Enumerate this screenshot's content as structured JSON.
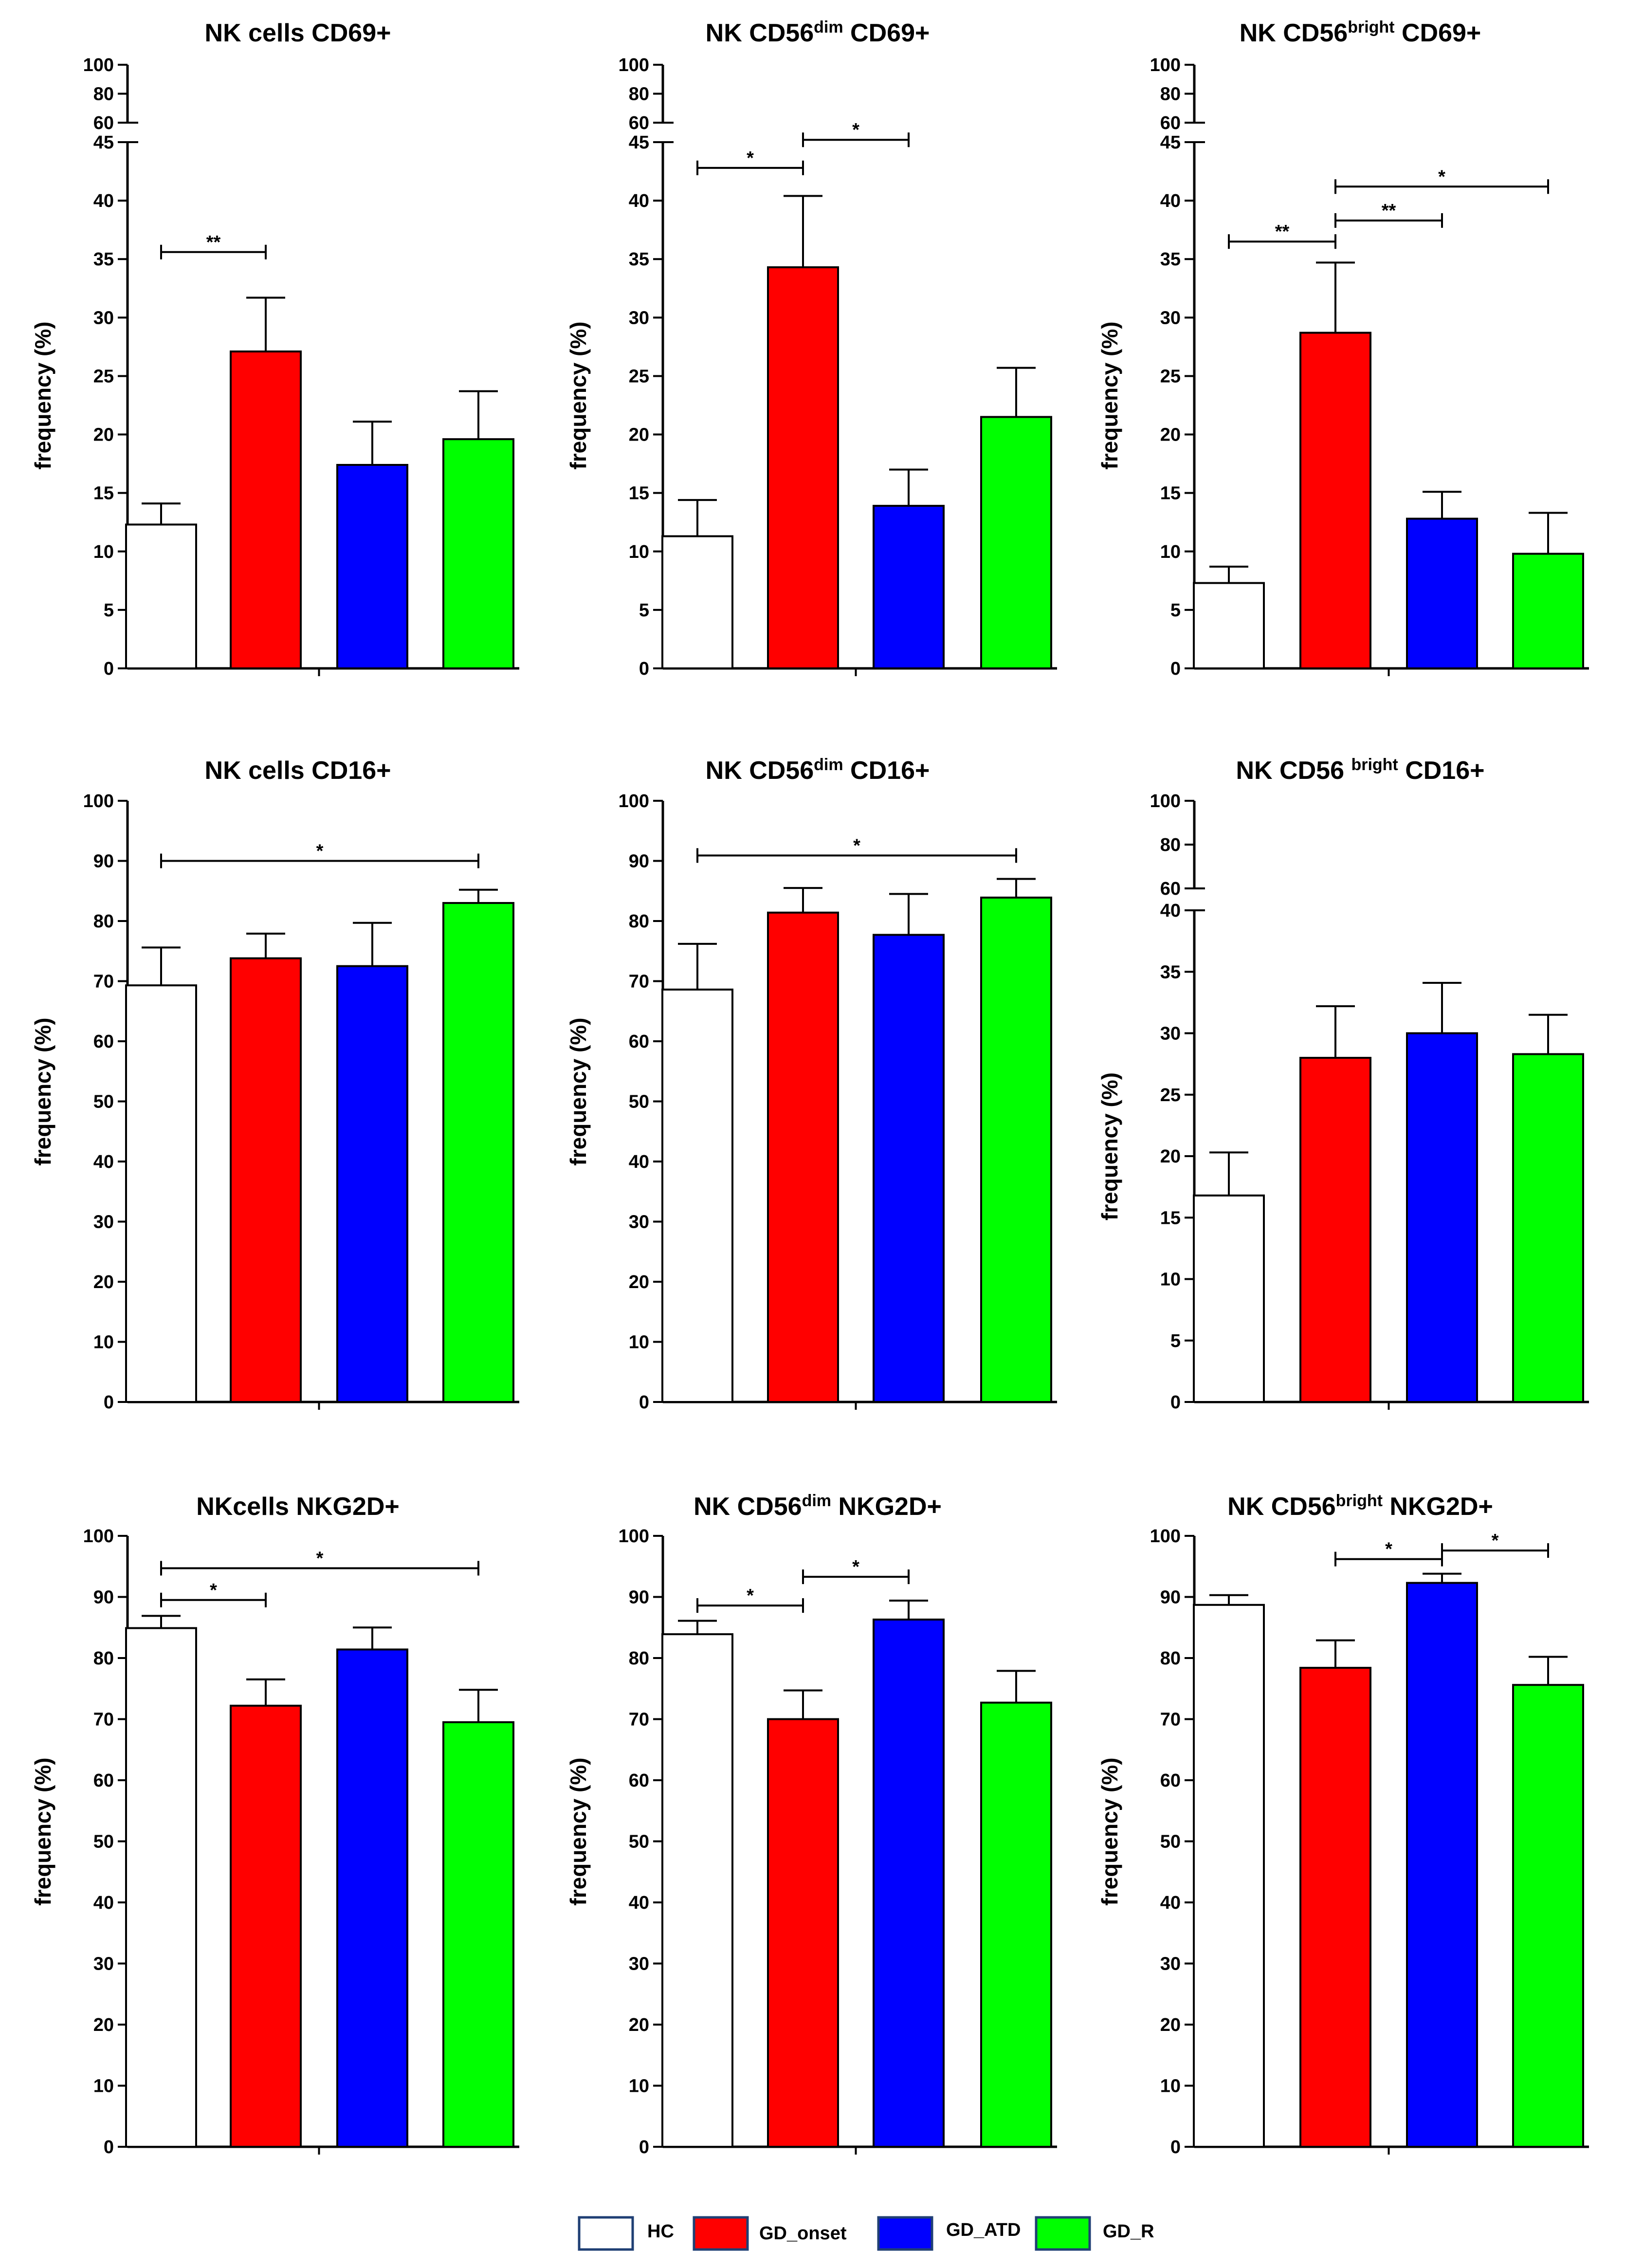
{
  "figure": {
    "y_axis_label": "frequency (%)",
    "group_colors": {
      "HC": "#ffffff",
      "GD_onset": "#ff0000",
      "GD_ATD": "#0000ff",
      "GD_R": "#00ff00"
    }
  },
  "legend": {
    "items": [
      {
        "label": "HC",
        "color": "#ffffff"
      },
      {
        "label": "GD_onset",
        "color": "#ff0000"
      },
      {
        "label": "GD_ATD",
        "color": "#0000ff"
      },
      {
        "label": "GD_R",
        "color": "#00ff00"
      }
    ]
  },
  "chart_data": [
    {
      "type": "bar",
      "title": {
        "text": "NK cells CD69+",
        "main": "NK cells CD69+",
        "sup": "",
        "tail": ""
      },
      "xlabel": "",
      "ylabel": "frequency (%)",
      "categories": [
        "HC",
        "GD_onset",
        "GD_ATD",
        "GD_R"
      ],
      "values": [
        12.3,
        27.1,
        17.4,
        19.6
      ],
      "errors": [
        1.8,
        4.6,
        3.7,
        4.1
      ],
      "y_segments": [
        {
          "range": [
            0,
            45
          ],
          "ticks": [
            0,
            5,
            10,
            15,
            20,
            25,
            30,
            35,
            40,
            45
          ]
        },
        {
          "range": [
            60,
            100
          ],
          "ticks": [
            60,
            80,
            100
          ]
        }
      ],
      "significance": [
        {
          "from": 0,
          "to": 1,
          "label": "**",
          "y": 35.6
        }
      ]
    },
    {
      "type": "bar",
      "title": {
        "text": "NK CD56dim CD69+",
        "main": "NK CD56",
        "sup": "dim",
        "tail": " CD69+"
      },
      "xlabel": "",
      "ylabel": "frequency (%)",
      "categories": [
        "HC",
        "GD_onset",
        "GD_ATD",
        "GD_R"
      ],
      "values": [
        11.3,
        34.3,
        13.9,
        21.5
      ],
      "errors": [
        3.1,
        6.1,
        3.1,
        4.2
      ],
      "y_segments": [
        {
          "range": [
            0,
            45
          ],
          "ticks": [
            0,
            5,
            10,
            15,
            20,
            25,
            30,
            35,
            40,
            45
          ]
        },
        {
          "range": [
            60,
            100
          ],
          "ticks": [
            60,
            80,
            100
          ]
        }
      ],
      "significance": [
        {
          "from": 0,
          "to": 1,
          "label": "*",
          "y": 42.8
        },
        {
          "from": 1,
          "to": 2,
          "label": "*",
          "y": 45.2
        }
      ]
    },
    {
      "type": "bar",
      "title": {
        "text": "NK CD56bright CD69+",
        "main": "NK CD56",
        "sup": "bright",
        "tail": " CD69+"
      },
      "xlabel": "",
      "ylabel": "frequency (%)",
      "categories": [
        "HC",
        "GD_onset",
        "GD_ATD",
        "GD_R"
      ],
      "values": [
        7.3,
        28.7,
        12.8,
        9.8
      ],
      "errors": [
        1.4,
        6.0,
        2.3,
        3.5
      ],
      "y_segments": [
        {
          "range": [
            0,
            45
          ],
          "ticks": [
            0,
            5,
            10,
            15,
            20,
            25,
            30,
            35,
            40,
            45
          ]
        },
        {
          "range": [
            60,
            100
          ],
          "ticks": [
            60,
            80,
            100
          ]
        }
      ],
      "significance": [
        {
          "from": 0,
          "to": 1,
          "label": "**",
          "y": 36.5
        },
        {
          "from": 1,
          "to": 2,
          "label": "**",
          "y": 38.3
        },
        {
          "from": 1,
          "to": 3,
          "label": "*",
          "y": 41.2
        }
      ]
    },
    {
      "type": "bar",
      "title": {
        "text": "NK cells CD16+",
        "main": "NK cells CD16+",
        "sup": "",
        "tail": ""
      },
      "xlabel": "",
      "ylabel": "frequency (%)",
      "categories": [
        "HC",
        "GD_onset",
        "GD_ATD",
        "GD_R"
      ],
      "values": [
        69.3,
        73.8,
        72.5,
        83.0
      ],
      "errors": [
        6.3,
        4.1,
        7.2,
        2.2
      ],
      "y_segments": [
        {
          "range": [
            0,
            100
          ],
          "ticks": [
            0,
            10,
            20,
            30,
            40,
            50,
            60,
            70,
            80,
            90,
            100
          ]
        }
      ],
      "significance": [
        {
          "from": 0,
          "to": 3,
          "label": "*",
          "y": 90.0
        }
      ]
    },
    {
      "type": "bar",
      "title": {
        "text": "NK CD56dim CD16+",
        "main": "NK CD56",
        "sup": "dim",
        "tail": " CD16+"
      },
      "xlabel": "",
      "ylabel": "frequency (%)",
      "categories": [
        "HC",
        "GD_onset",
        "GD_ATD",
        "GD_R"
      ],
      "values": [
        68.6,
        81.4,
        77.7,
        83.9
      ],
      "errors": [
        7.6,
        4.1,
        6.8,
        3.1
      ],
      "y_segments": [
        {
          "range": [
            0,
            100
          ],
          "ticks": [
            0,
            10,
            20,
            30,
            40,
            50,
            60,
            70,
            80,
            90,
            100
          ]
        }
      ],
      "significance": [
        {
          "from": 0,
          "to": 3,
          "label": "*",
          "y": 90.9
        }
      ]
    },
    {
      "type": "bar",
      "title": {
        "text": "NK CD56 bright CD16+",
        "main": "NK CD56 ",
        "sup": "bright",
        "tail": " CD16+"
      },
      "xlabel": "",
      "ylabel": "frequency (%)",
      "categories": [
        "HC",
        "GD_onset",
        "GD_ATD",
        "GD_R"
      ],
      "values": [
        16.8,
        28.0,
        30.0,
        28.3
      ],
      "errors": [
        3.5,
        4.2,
        4.1,
        3.2
      ],
      "y_segments": [
        {
          "range": [
            0,
            40
          ],
          "ticks": [
            0,
            5,
            10,
            15,
            20,
            25,
            30,
            35,
            40
          ]
        },
        {
          "range": [
            60,
            100
          ],
          "ticks": [
            60,
            80,
            100
          ]
        }
      ],
      "significance": []
    },
    {
      "type": "bar",
      "title": {
        "text": "NKcells NKG2D+",
        "main": "NKcells NKG2D+",
        "sup": "",
        "tail": ""
      },
      "xlabel": "",
      "ylabel": "frequency (%)",
      "categories": [
        "HC",
        "GD_onset",
        "GD_ATD",
        "GD_R"
      ],
      "values": [
        84.9,
        72.2,
        81.4,
        69.5
      ],
      "errors": [
        2.0,
        4.3,
        3.6,
        5.3
      ],
      "y_segments": [
        {
          "range": [
            0,
            100
          ],
          "ticks": [
            0,
            10,
            20,
            30,
            40,
            50,
            60,
            70,
            80,
            90,
            100
          ]
        }
      ],
      "significance": [
        {
          "from": 0,
          "to": 1,
          "label": "*",
          "y": 89.5
        },
        {
          "from": 0,
          "to": 3,
          "label": "*",
          "y": 94.7
        }
      ]
    },
    {
      "type": "bar",
      "title": {
        "text": "NK CD56dim NKG2D+",
        "main": "NK CD56",
        "sup": "dim",
        "tail": " NKG2D+"
      },
      "xlabel": "",
      "ylabel": "frequency (%)",
      "categories": [
        "HC",
        "GD_onset",
        "GD_ATD",
        "GD_R"
      ],
      "values": [
        83.9,
        70.0,
        86.3,
        72.7
      ],
      "errors": [
        2.2,
        4.7,
        3.1,
        5.2
      ],
      "y_segments": [
        {
          "range": [
            0,
            100
          ],
          "ticks": [
            0,
            10,
            20,
            30,
            40,
            50,
            60,
            70,
            80,
            90,
            100
          ]
        }
      ],
      "significance": [
        {
          "from": 0,
          "to": 1,
          "label": "*",
          "y": 88.6
        },
        {
          "from": 1,
          "to": 2,
          "label": "*",
          "y": 93.3
        }
      ]
    },
    {
      "type": "bar",
      "title": {
        "text": "NK CD56bright NKG2D+",
        "main": "NK CD56",
        "sup": "bright",
        "tail": " NKG2D+"
      },
      "xlabel": "",
      "ylabel": "frequency (%)",
      "categories": [
        "HC",
        "GD_onset",
        "GD_ATD",
        "GD_R"
      ],
      "values": [
        88.7,
        78.4,
        92.3,
        75.6
      ],
      "errors": [
        1.6,
        4.5,
        1.5,
        4.6
      ],
      "y_segments": [
        {
          "range": [
            0,
            100
          ],
          "ticks": [
            0,
            10,
            20,
            30,
            40,
            50,
            60,
            70,
            80,
            90,
            100
          ]
        }
      ],
      "significance": [
        {
          "from": 1,
          "to": 2,
          "label": "*",
          "y": 96.2
        },
        {
          "from": 2,
          "to": 3,
          "label": "*",
          "y": 97.6
        }
      ]
    }
  ]
}
